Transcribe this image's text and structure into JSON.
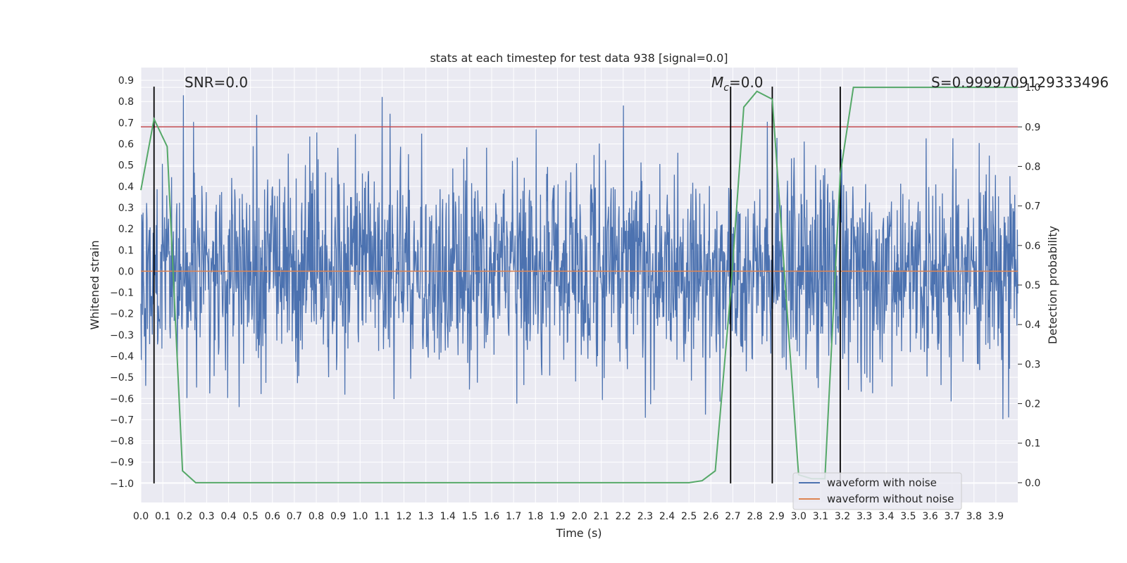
{
  "chart_data": {
    "type": "line",
    "title": "stats at each timestep for test data 938 [signal=0.0]",
    "xlabel": "Time (s)",
    "ylabel": "Whitened strain",
    "y2label": "Detection probability",
    "xlim": [
      0.0,
      4.0
    ],
    "ylim": [
      -1.09,
      0.96
    ],
    "y2lim": [
      -0.05,
      1.05
    ],
    "xticks": [
      0.0,
      0.1,
      0.2,
      0.3,
      0.4,
      0.5,
      0.6,
      0.7,
      0.8,
      0.9,
      1.0,
      1.1,
      1.2,
      1.3,
      1.4,
      1.5,
      1.6,
      1.7,
      1.8,
      1.9,
      2.0,
      2.1,
      2.2,
      2.3,
      2.4,
      2.5,
      2.6,
      2.7,
      2.8,
      2.9,
      3.0,
      3.1,
      3.2,
      3.3,
      3.4,
      3.5,
      3.6,
      3.7,
      3.8,
      3.9
    ],
    "xtick_labels": [
      "0.0",
      "0.1",
      "0.2",
      "0.3",
      "0.4",
      "0.5",
      "0.6",
      "0.7",
      "0.8",
      "0.9",
      "1.0",
      "1.1",
      "1.2",
      "1.3",
      "1.4",
      "1.5",
      "1.6",
      "1.7",
      "1.8",
      "1.9",
      "2.0",
      "2.1",
      "2.2",
      "2.3",
      "2.4",
      "2.5",
      "2.6",
      "2.7",
      "2.8",
      "2.9",
      "3.0",
      "3.1",
      "3.2",
      "3.3",
      "3.4",
      "3.5",
      "3.6",
      "3.7",
      "3.8",
      "3.9"
    ],
    "yticks": [
      0.9,
      0.8,
      0.7,
      0.6,
      0.5,
      0.4,
      0.3,
      0.2,
      0.1,
      0.0,
      -0.1,
      -0.2,
      -0.3,
      -0.4,
      -0.5,
      -0.6,
      -0.7,
      -0.8,
      -0.9,
      -1.0
    ],
    "ytick_labels": [
      "0.9",
      "0.8",
      "0.7",
      "0.6",
      "0.5",
      "0.4",
      "0.3",
      "0.2",
      "0.1",
      "0.0",
      "−0.1",
      "−0.2",
      "−0.3",
      "−0.4",
      "−0.5",
      "−0.6",
      "−0.7",
      "−0.8",
      "−0.9",
      "−1.0"
    ],
    "y2ticks": [
      1.0,
      0.9,
      0.8,
      0.7,
      0.6,
      0.5,
      0.4,
      0.3,
      0.2,
      0.1,
      0.0
    ],
    "y2tick_labels": [
      "1.0",
      "0.9",
      "0.8",
      "0.7",
      "0.6",
      "0.5",
      "0.4",
      "0.3",
      "0.2",
      "0.1",
      "0.0"
    ],
    "annotations": {
      "snr": "SNR=0.0",
      "mc_symbol": "M",
      "mc_sub": "c",
      "mc_value": "=0.0",
      "s": "S=0.9999709129333496"
    },
    "threshold": {
      "y2": 0.9,
      "color": "#c44e52"
    },
    "vlines_x": [
      0.06,
      2.69,
      2.88,
      3.19
    ],
    "vline_range_y": [
      -1.0,
      0.87
    ],
    "series": [
      {
        "name": "waveform with noise",
        "color": "#4c72b0",
        "axis": "left",
        "generator": {
          "kind": "noise",
          "n": 2000,
          "seed": 938,
          "sigma": 0.24,
          "clip": [
            -0.99,
            0.88
          ]
        }
      },
      {
        "name": "waveform without noise",
        "color": "#dd8452",
        "axis": "left",
        "x": [
          0.0,
          4.0
        ],
        "values": [
          0.0,
          0.0
        ]
      },
      {
        "name": "detection probability",
        "color": "#55a868",
        "axis": "right",
        "x": [
          0.0,
          0.06,
          0.12,
          0.19,
          0.25,
          0.5,
          2.5,
          2.56,
          2.62,
          2.69,
          2.75,
          2.81,
          2.88,
          3.0,
          3.06,
          3.12,
          3.19,
          3.25,
          4.0
        ],
        "values": [
          0.74,
          0.92,
          0.85,
          0.03,
          0.0,
          0.0,
          0.0,
          0.005,
          0.03,
          0.48,
          0.95,
          0.99,
          0.97,
          0.02,
          0.01,
          0.01,
          0.78,
          1.0,
          1.0
        ]
      }
    ],
    "legend": {
      "placement": "lower-right",
      "entries": [
        {
          "label": "waveform with noise",
          "color": "#4c72b0"
        },
        {
          "label": "waveform without noise",
          "color": "#dd8452"
        }
      ]
    },
    "grid": true,
    "style": {
      "face": "#eaeaf2",
      "grid": "#ffffff",
      "vline": "#000000"
    }
  }
}
